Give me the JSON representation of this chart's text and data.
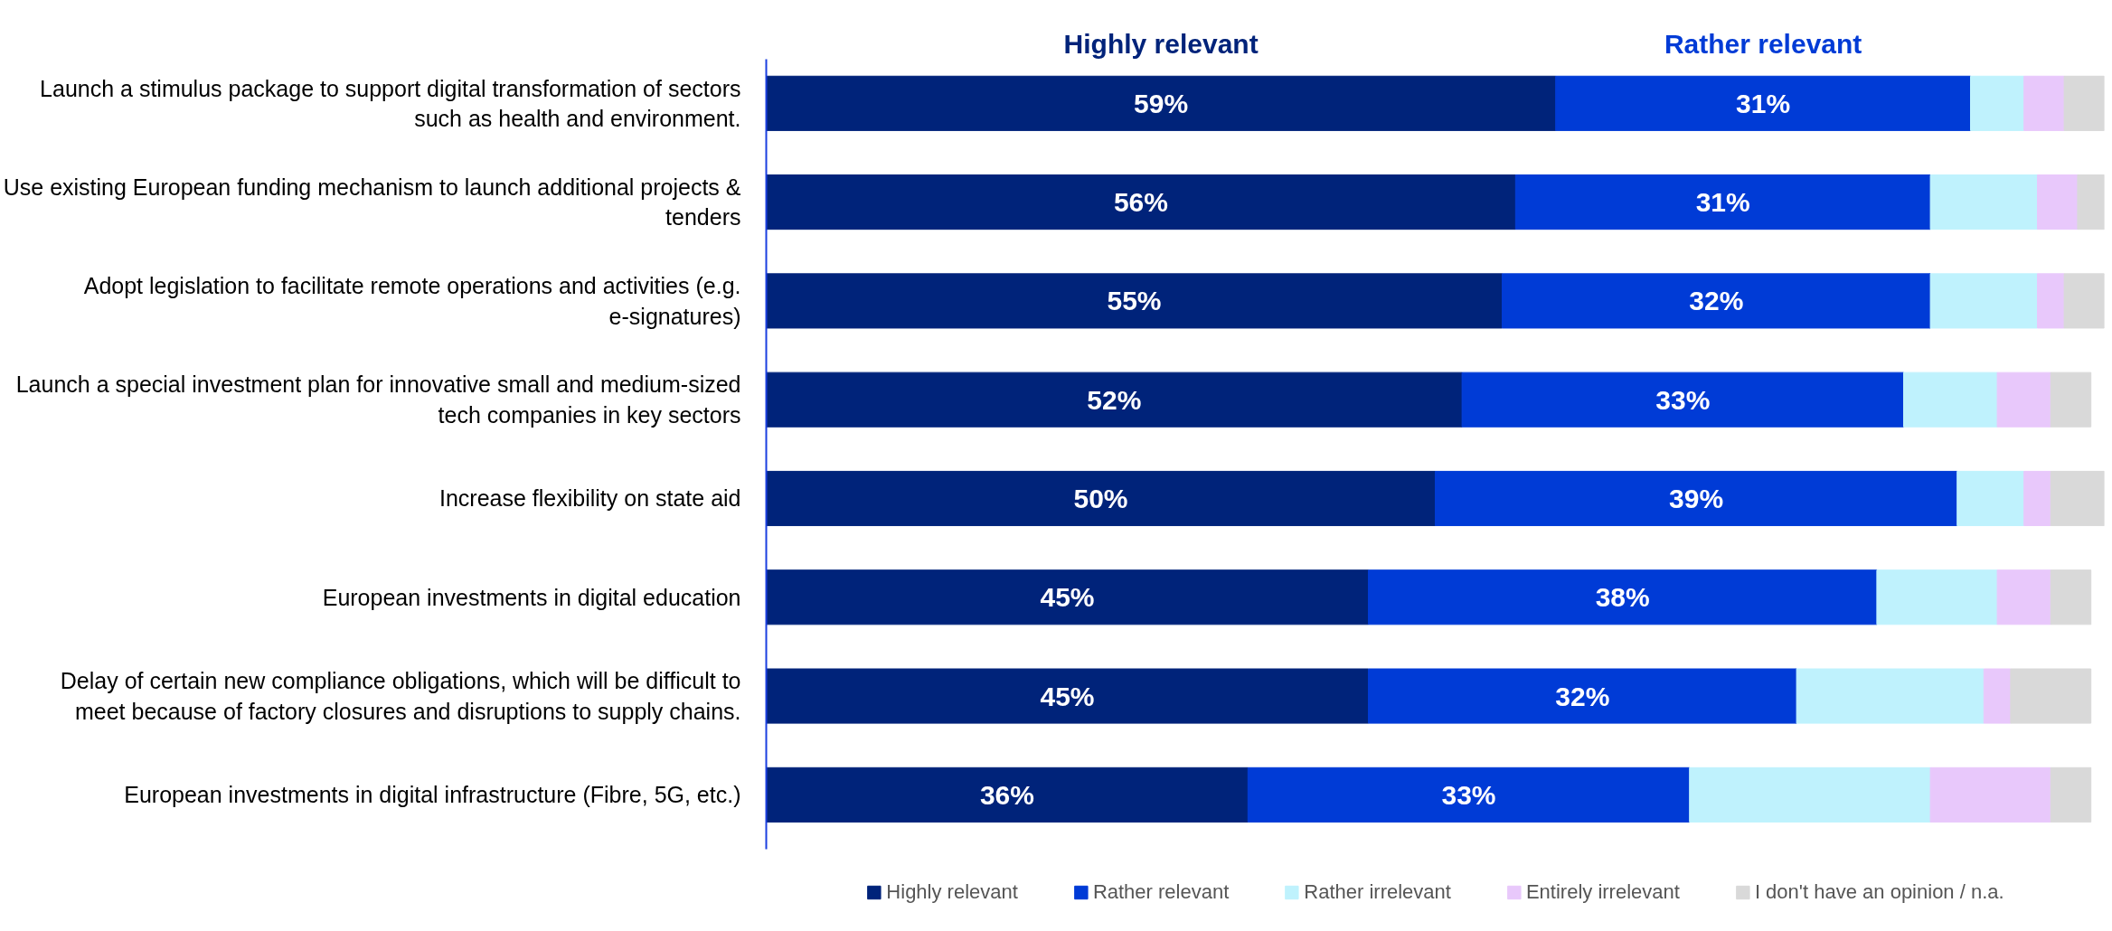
{
  "chart_data": {
    "type": "bar",
    "orientation": "horizontal",
    "stacked": true,
    "categories": [
      "Launch a stimulus package to support digital transformation of sectors such as health and environment.",
      "Use existing European funding mechanism to launch additional projects & tenders",
      "Adopt legislation to facilitate remote operations and activities (e.g. e-signatures)",
      "Launch a special investment plan for innovative small and medium-sized tech companies in key sectors",
      "Increase flexibility on state aid",
      "European investments in digital education",
      "Delay of certain new compliance obligations, which will be difficult to meet because of factory closures and disruptions to supply chains.",
      "European investments in digital infrastructure (Fibre, 5G, etc.)"
    ],
    "series": [
      {
        "name": "Highly relevant",
        "color": "#00237a",
        "values": [
          59,
          56,
          55,
          52,
          50,
          45,
          45,
          36
        ],
        "value_labels": [
          "59%",
          "56%",
          "55%",
          "52%",
          "50%",
          "45%",
          "45%",
          "36%"
        ]
      },
      {
        "name": "Rather relevant",
        "color": "#003bd6",
        "values": [
          31,
          31,
          32,
          33,
          39,
          38,
          32,
          33
        ],
        "value_labels": [
          "31%",
          "31%",
          "32%",
          "33%",
          "39%",
          "38%",
          "32%",
          "33%"
        ]
      },
      {
        "name": "Rather irrelevant",
        "color": "#bff2fd",
        "values": [
          4,
          8,
          8,
          7,
          5,
          9,
          14,
          18
        ]
      },
      {
        "name": "Entirely irrelevant",
        "color": "#e8c8fb",
        "values": [
          3,
          3,
          2,
          4,
          2,
          4,
          2,
          9
        ]
      },
      {
        "name": "I don't have an opinion / n.a.",
        "color": "#d9d9d9",
        "values": [
          3,
          2,
          3,
          3,
          4,
          3,
          6,
          3
        ]
      }
    ],
    "annotations": [
      "Highly relevant",
      "Rather relevant"
    ],
    "xlim": [
      0,
      100
    ],
    "tick_labels": "y",
    "grid": false,
    "legend": "bottom"
  }
}
